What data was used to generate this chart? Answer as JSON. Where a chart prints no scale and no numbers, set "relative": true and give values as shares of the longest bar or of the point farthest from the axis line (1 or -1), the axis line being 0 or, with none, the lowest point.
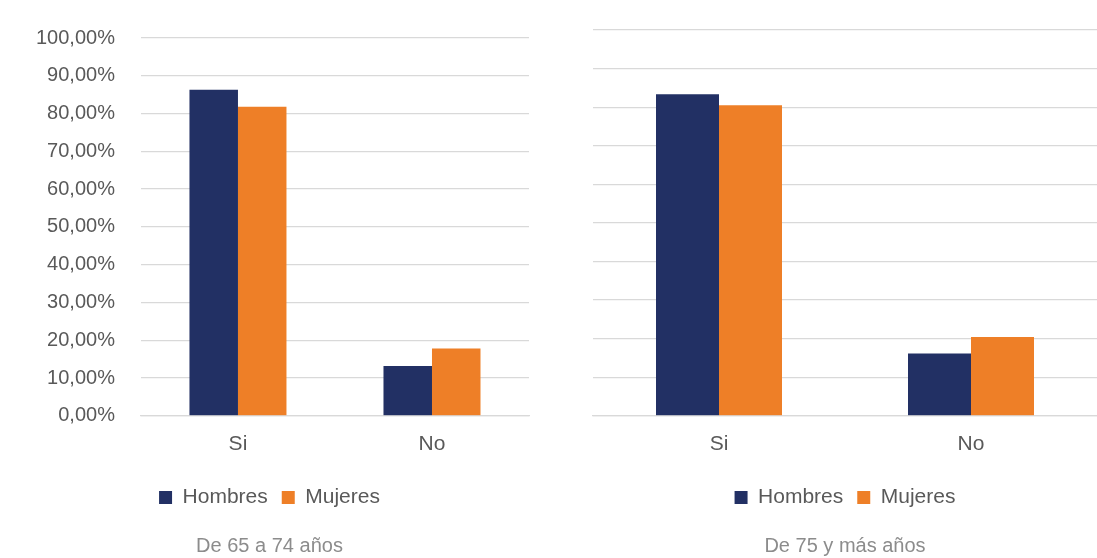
{
  "chart_data": [
    {
      "type": "bar",
      "title": "De 65 a 74 años",
      "categories": [
        "Si",
        "No"
      ],
      "series": [
        {
          "name": "Hombres",
          "color": "#223064",
          "values": [
            86.3,
            13.2
          ]
        },
        {
          "name": "Mujeres",
          "color": "#ee7f27",
          "values": [
            81.8,
            17.8
          ]
        }
      ],
      "ylim": [
        0,
        100
      ],
      "yticks": [
        {
          "value": 0,
          "label": "0,00%"
        },
        {
          "value": 10,
          "label": "10,00%"
        },
        {
          "value": 20,
          "label": "20,00%"
        },
        {
          "value": 30,
          "label": "30,00%"
        },
        {
          "value": 40,
          "label": "40,00%"
        },
        {
          "value": 50,
          "label": "50,00%"
        },
        {
          "value": 60,
          "label": "60,00%"
        },
        {
          "value": 70,
          "label": "70,00%"
        },
        {
          "value": 80,
          "label": "80,00%"
        },
        {
          "value": 90,
          "label": "90,00%"
        },
        {
          "value": 100,
          "label": "100,00%"
        }
      ],
      "grid": "y",
      "legend": "bottom"
    },
    {
      "type": "bar",
      "title": "De 75 y más años",
      "categories": [
        "Si",
        "No"
      ],
      "series": [
        {
          "name": "Hombres",
          "color": "#223064",
          "values": [
            1,
            0.194
          ]
        },
        {
          "name": "Mujeres",
          "color": "#ee7f27",
          "values": [
            0.966,
            0.245
          ]
        }
      ],
      "relative": true,
      "grid": "y",
      "legend": "bottom"
    }
  ]
}
